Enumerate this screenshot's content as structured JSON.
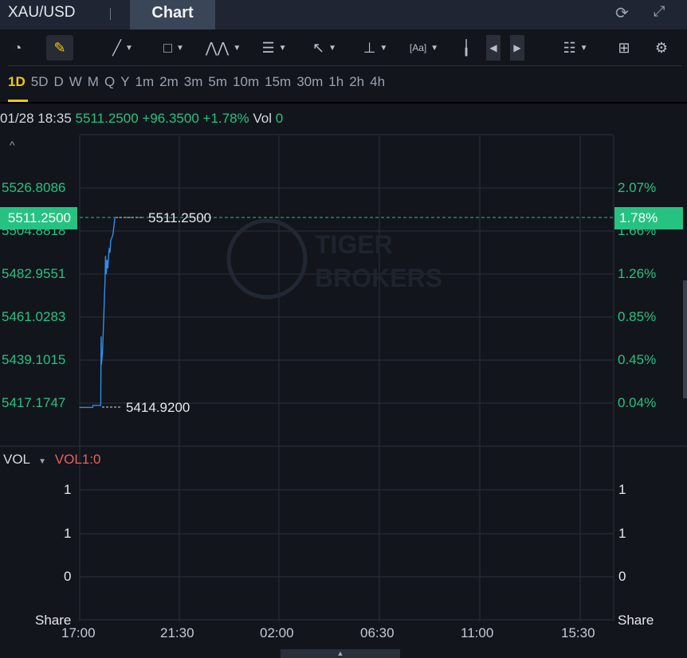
{
  "header": {
    "symbol": "XAU/USD",
    "tab": "Chart",
    "icons": [
      "refresh-icon",
      "fullscreen-icon"
    ]
  },
  "toolbar": {
    "icons": [
      "speedometer-icon",
      "pencil-icon",
      "line-tool-icon",
      "rectangle-tool-icon",
      "pattern-tool-icon",
      "fibonacci-tool-icon",
      "arrow-tool-icon",
      "measure-tool-icon",
      "text-tool-icon",
      "candlestick-icon",
      "prev-icon",
      "next-icon",
      "indicator-list-icon",
      "layout-grid-icon",
      "settings-icon"
    ],
    "accent": "#f2c811"
  },
  "periods": [
    "1D",
    "5D",
    "D",
    "W",
    "M",
    "Q",
    "Y",
    "1m",
    "2m",
    "3m",
    "5m",
    "10m",
    "15m",
    "30m",
    "1h",
    "2h",
    "4h"
  ],
  "selected_period": "1D",
  "info": {
    "datetime": "01/28 18:35",
    "price": "5511.2500",
    "change": "+96.3500",
    "change_pct": "+1.78%",
    "vol_label": "Vol",
    "vol": "0"
  },
  "price_axis": {
    "labels": [
      "5526.8086",
      "5504.8818",
      "5482.9551",
      "5461.0283",
      "5439.1015",
      "5417.1747"
    ],
    "current_tag": "5511.2500"
  },
  "pct_axis": {
    "labels": [
      "2.07%",
      "1.66%",
      "1.26%",
      "0.85%",
      "0.45%",
      "0.04%"
    ],
    "current_tag": "1.78%"
  },
  "markers": {
    "high": "5511.2500",
    "low": "5414.9200"
  },
  "volume": {
    "label": "VOL",
    "indicator": "VOL1:0",
    "left_labels": [
      "1",
      "1",
      "0"
    ],
    "right_labels": [
      "1",
      "1",
      "0"
    ],
    "unit": "Share"
  },
  "time_axis": [
    "17:00",
    "21:30",
    "02:00",
    "06:30",
    "11:00",
    "15:30"
  ],
  "watermark": "TIGER BROKERS",
  "colors": {
    "up": "#26c281",
    "line": "#2f8fe8",
    "bg": "#12151c",
    "vol_indicator": "#e8625a"
  },
  "chart_data": {
    "type": "line",
    "ylim": [
      5417.1747,
      5526.8086
    ],
    "x": [
      "17:00",
      "17:35",
      "17:36",
      "17:57",
      "17:58",
      "17:59",
      "18:02",
      "18:05",
      "18:09",
      "18:10",
      "18:12",
      "18:14",
      "18:16",
      "18:20",
      "18:22",
      "18:24",
      "18:30",
      "18:35"
    ],
    "values": [
      5415,
      5415,
      5416,
      5416,
      5451,
      5437,
      5444,
      5460,
      5481,
      5492,
      5483,
      5490,
      5486,
      5496,
      5494,
      5500,
      5503,
      5511.25
    ]
  }
}
